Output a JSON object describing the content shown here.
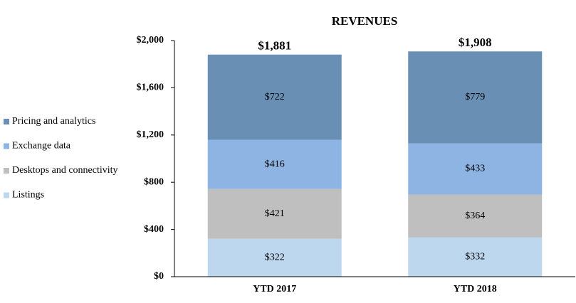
{
  "chart_data": {
    "type": "stacked_bar",
    "title": "REVENUES",
    "categories": [
      "YTD 2017",
      "YTD 2018"
    ],
    "series": [
      {
        "name": "Listings",
        "color": "#bdd7ee",
        "values": [
          322,
          332
        ],
        "value_labels": [
          "$322",
          "$332"
        ]
      },
      {
        "name": "Desktops and connectivity",
        "color": "#bfbfbf",
        "values": [
          421,
          364
        ],
        "value_labels": [
          "$421",
          "$364"
        ]
      },
      {
        "name": "Exchange data",
        "color": "#8db4e2",
        "values": [
          416,
          433
        ],
        "value_labels": [
          "$416",
          "$433"
        ]
      },
      {
        "name": "Pricing and analytics",
        "color": "#6a8fb4",
        "values": [
          722,
          779
        ],
        "value_labels": [
          "$722",
          "$779"
        ]
      }
    ],
    "totals": [
      1881,
      1908
    ],
    "total_labels": [
      "$1,881",
      "$1,908"
    ],
    "ylim": [
      0,
      2000
    ],
    "yticks": [
      {
        "value": 0,
        "label": "$0"
      },
      {
        "value": 400,
        "label": "$400"
      },
      {
        "value": 800,
        "label": "$800"
      },
      {
        "value": 1200,
        "label": "$1,200"
      },
      {
        "value": 1600,
        "label": "$1,600"
      },
      {
        "value": 2000,
        "label": "$2,000"
      }
    ],
    "legend": "left"
  }
}
